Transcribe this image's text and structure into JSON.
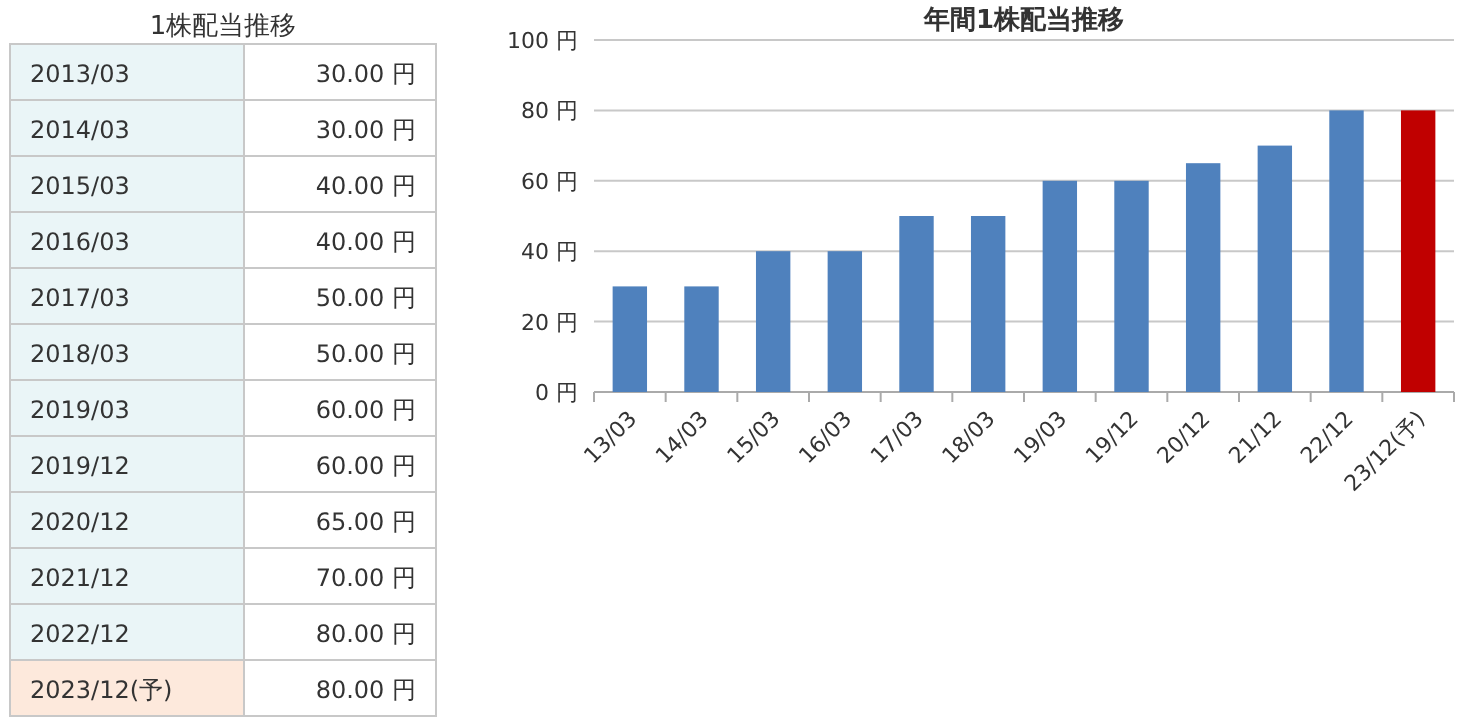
{
  "chart_data": [
    {
      "type": "other",
      "title": "1株配当推移",
      "categories": [
        "2013/03",
        "2014/03",
        "2015/03",
        "2016/03",
        "2017/03",
        "2018/03",
        "2019/03",
        "2019/12",
        "2020/12",
        "2021/12",
        "2022/12",
        "2023/12(予)"
      ],
      "annotations": [
        "30.00 円",
        "30.00 円",
        "40.00 円",
        "40.00 円",
        "50.00 円",
        "50.00 円",
        "60.00 円",
        "60.00 円",
        "65.00 円",
        "70.00 円",
        "80.00 円",
        "80.00 円"
      ],
      "colors": [
        "#eaf5f7",
        "#eaf5f7",
        "#eaf5f7",
        "#eaf5f7",
        "#eaf5f7",
        "#eaf5f7",
        "#eaf5f7",
        "#eaf5f7",
        "#eaf5f7",
        "#eaf5f7",
        "#eaf5f7",
        "#fde9dc"
      ]
    },
    {
      "type": "bar",
      "title": "年間1株配当推移",
      "categories": [
        "13/03",
        "14/03",
        "15/03",
        "16/03",
        "17/03",
        "18/03",
        "19/03",
        "19/12",
        "20/12",
        "21/12",
        "22/12",
        "23/12(予)"
      ],
      "values": [
        30,
        30,
        40,
        40,
        50,
        50,
        60,
        60,
        65,
        70,
        80,
        80
      ],
      "colors": [
        "#4f81bd",
        "#4f81bd",
        "#4f81bd",
        "#4f81bd",
        "#4f81bd",
        "#4f81bd",
        "#4f81bd",
        "#4f81bd",
        "#4f81bd",
        "#4f81bd",
        "#4f81bd",
        "#c00000"
      ],
      "ylim": [
        0,
        100
      ],
      "yticks": [
        {
          "value": 0,
          "label": "0 円"
        },
        {
          "value": 20,
          "label": "20 円"
        },
        {
          "value": 40,
          "label": "40 円"
        },
        {
          "value": 60,
          "label": "60 円"
        },
        {
          "value": 80,
          "label": "80 円"
        },
        {
          "value": 100,
          "label": "100 円"
        }
      ],
      "grid": "y"
    }
  ]
}
